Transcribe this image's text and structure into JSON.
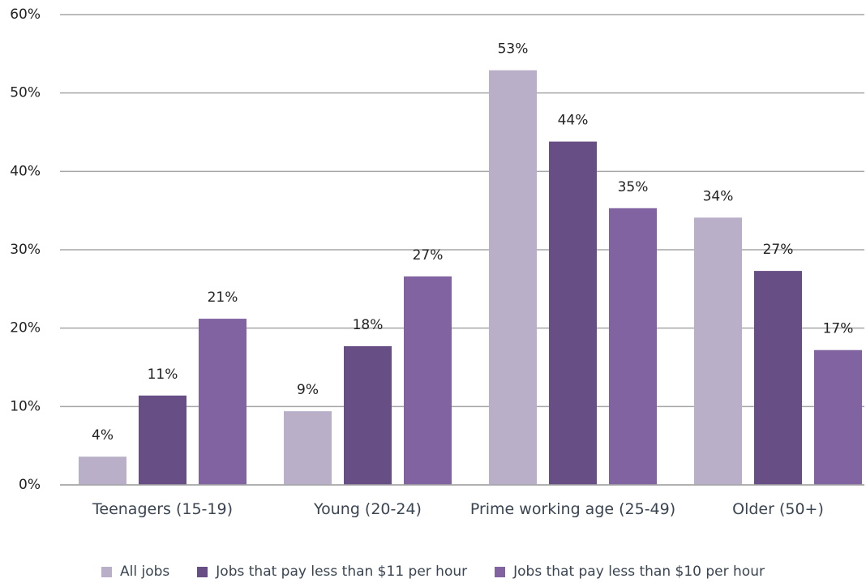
{
  "chart_data": {
    "type": "bar",
    "categories": [
      "Teenagers (15-19)",
      "Young (20-24)",
      "Prime working age (25-49)",
      "Older (50+)"
    ],
    "series": [
      {
        "name": "All jobs",
        "color": "#b9afc9",
        "values": [
          3.6,
          9.4,
          52.9,
          34.1
        ],
        "value_labels": [
          "4%",
          "9%",
          "53%",
          "34%"
        ]
      },
      {
        "name": "Jobs that pay less than $11 per hour",
        "color": "#674f85",
        "values": [
          11.4,
          17.7,
          43.8,
          27.3
        ],
        "value_labels": [
          "11%",
          "18%",
          "44%",
          "27%"
        ]
      },
      {
        "name": "Jobs that pay less than $10 per hour",
        "color": "#8063a0",
        "values": [
          21.2,
          26.6,
          35.3,
          17.2
        ],
        "value_labels": [
          "21%",
          "27%",
          "35%",
          "17%"
        ]
      }
    ],
    "ylim": [
      0,
      60
    ],
    "yticks": [
      {
        "value": 0,
        "label": "0%"
      },
      {
        "value": 10,
        "label": "10%"
      },
      {
        "value": 20,
        "label": "20%"
      },
      {
        "value": 30,
        "label": "30%"
      },
      {
        "value": 40,
        "label": "40%"
      },
      {
        "value": 50,
        "label": "50%"
      },
      {
        "value": 60,
        "label": "60%"
      }
    ],
    "grid": true
  }
}
